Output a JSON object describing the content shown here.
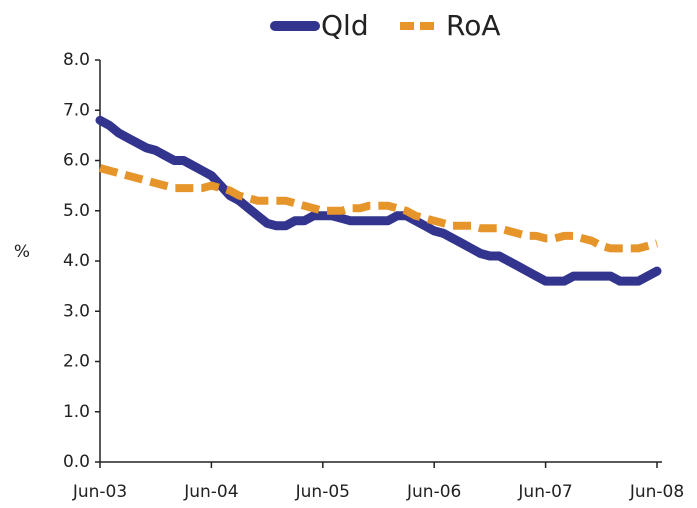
{
  "chart_data": {
    "type": "line",
    "y_label": "%",
    "legend": "top",
    "categories": [
      "Jun-03",
      null,
      null,
      null,
      null,
      null,
      null,
      null,
      null,
      null,
      null,
      null,
      "Jun-04",
      null,
      null,
      null,
      null,
      null,
      null,
      null,
      null,
      null,
      null,
      null,
      "Jun-05",
      null,
      null,
      null,
      null,
      null,
      null,
      null,
      null,
      null,
      null,
      null,
      "Jun-06",
      null,
      null,
      null,
      null,
      null,
      null,
      null,
      null,
      null,
      null,
      null,
      "Jun-07",
      null,
      null,
      null,
      null,
      null,
      null,
      null,
      null,
      null,
      null,
      null,
      "Jun-08"
    ],
    "series": [
      {
        "name": "Qld",
        "color": "#33348e",
        "dashed": false,
        "values": [
          6.8,
          6.7,
          6.55,
          6.45,
          6.35,
          6.25,
          6.2,
          6.1,
          6.0,
          6.0,
          5.9,
          5.8,
          5.7,
          5.5,
          5.3,
          5.2,
          5.05,
          4.9,
          4.75,
          4.7,
          4.7,
          4.8,
          4.8,
          4.9,
          4.9,
          4.9,
          4.85,
          4.8,
          4.8,
          4.8,
          4.8,
          4.8,
          4.9,
          4.9,
          4.8,
          4.7,
          4.6,
          4.55,
          4.45,
          4.35,
          4.25,
          4.15,
          4.1,
          4.1,
          4.0,
          3.9,
          3.8,
          3.7,
          3.6,
          3.6,
          3.6,
          3.7,
          3.7,
          3.7,
          3.7,
          3.7,
          3.6,
          3.6,
          3.6,
          3.7,
          3.8
        ]
      },
      {
        "name": "RoA",
        "color": "#e6952a",
        "dashed": true,
        "values": [
          5.85,
          5.8,
          5.75,
          5.7,
          5.65,
          5.6,
          5.55,
          5.5,
          5.45,
          5.45,
          5.45,
          5.45,
          5.5,
          5.45,
          5.4,
          5.3,
          5.25,
          5.2,
          5.2,
          5.2,
          5.2,
          5.15,
          5.1,
          5.05,
          5.0,
          5.0,
          5.0,
          5.05,
          5.05,
          5.1,
          5.1,
          5.1,
          5.05,
          5.0,
          4.9,
          4.85,
          4.8,
          4.75,
          4.7,
          4.7,
          4.7,
          4.65,
          4.65,
          4.65,
          4.6,
          4.55,
          4.5,
          4.5,
          4.45,
          4.45,
          4.5,
          4.5,
          4.45,
          4.4,
          4.3,
          4.25,
          4.25,
          4.25,
          4.25,
          4.3,
          4.35
        ]
      }
    ],
    "ylim": [
      0,
      8
    ],
    "yticks": [
      {
        "value": 0,
        "label": "0.0"
      },
      {
        "value": 1,
        "label": "1.0"
      },
      {
        "value": 2,
        "label": "2.0"
      },
      {
        "value": 3,
        "label": "3.0"
      },
      {
        "value": 4,
        "label": "4.0"
      },
      {
        "value": 5,
        "label": "5.0"
      },
      {
        "value": 6,
        "label": "6.0"
      },
      {
        "value": 7,
        "label": "7.0"
      },
      {
        "value": 8,
        "label": "8.0"
      }
    ],
    "grid": false
  }
}
